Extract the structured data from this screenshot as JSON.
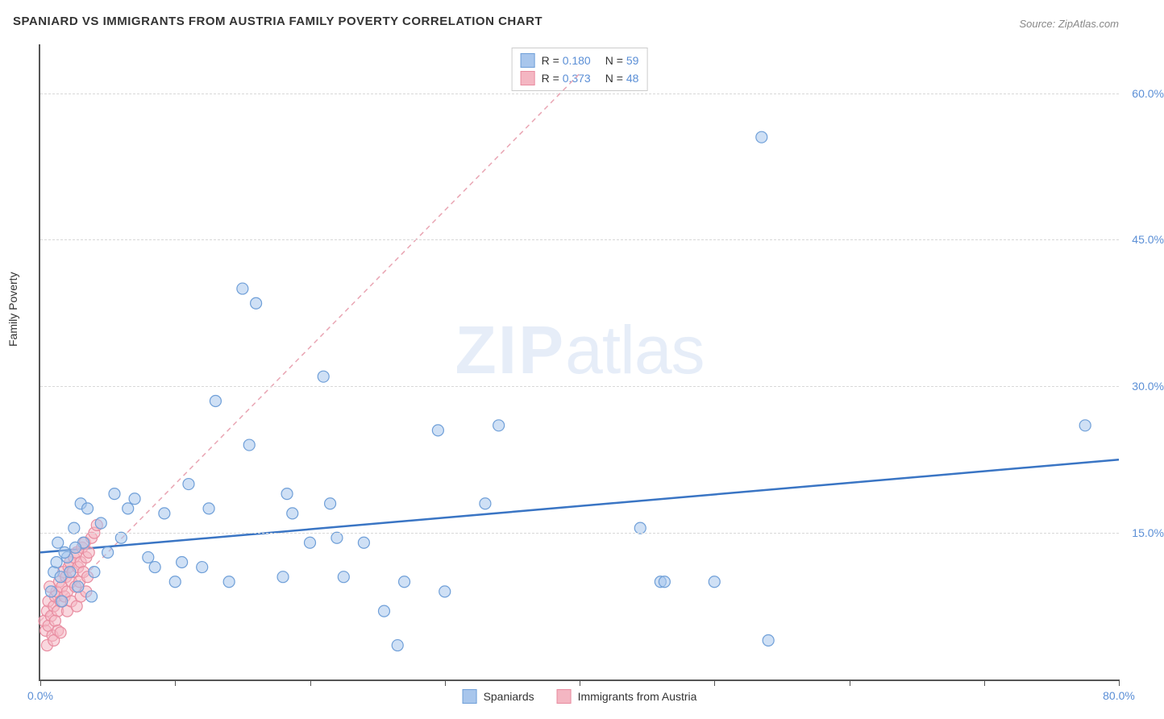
{
  "title": "SPANIARD VS IMMIGRANTS FROM AUSTRIA FAMILY POVERTY CORRELATION CHART",
  "source": "Source: ZipAtlas.com",
  "ylabel": "Family Poverty",
  "watermark_bold": "ZIP",
  "watermark_light": "atlas",
  "background_color": "#ffffff",
  "chart": {
    "type": "scatter",
    "xlim": [
      0,
      80
    ],
    "ylim": [
      0,
      65
    ],
    "x_tick_positions": [
      0,
      10,
      20,
      30,
      40,
      50,
      60,
      70,
      80
    ],
    "x_tick_labels": {
      "0": "0.0%",
      "80": "80.0%"
    },
    "y_ticks": [
      15,
      30,
      45,
      60
    ],
    "y_tick_labels": [
      "15.0%",
      "30.0%",
      "45.0%",
      "60.0%"
    ],
    "grid_color": "#d8d8d8",
    "axis_color": "#555555",
    "marker_radius": 7,
    "marker_stroke_width": 1.2,
    "series": [
      {
        "name": "Spaniards",
        "fill_color": "#a8c6ec",
        "stroke_color": "#6f9fd8",
        "fill_opacity": 0.55,
        "r_value": "0.180",
        "n_value": "59",
        "trendline": {
          "x1": 0,
          "y1": 13.0,
          "x2": 80,
          "y2": 22.5,
          "stroke": "#3a75c4",
          "stroke_width": 2.5,
          "dash": "none"
        },
        "points": [
          [
            1.0,
            11.0
          ],
          [
            1.2,
            12.0
          ],
          [
            1.5,
            10.5
          ],
          [
            0.8,
            9.0
          ],
          [
            2.0,
            12.5
          ],
          [
            2.2,
            11.0
          ],
          [
            1.8,
            13.0
          ],
          [
            2.5,
            15.5
          ],
          [
            3.0,
            18.0
          ],
          [
            3.2,
            14.0
          ],
          [
            3.5,
            17.5
          ],
          [
            4.0,
            11.0
          ],
          [
            4.5,
            16.0
          ],
          [
            5.0,
            13.0
          ],
          [
            5.5,
            19.0
          ],
          [
            6.0,
            14.5
          ],
          [
            6.5,
            17.5
          ],
          [
            7.0,
            18.5
          ],
          [
            8.0,
            12.5
          ],
          [
            8.5,
            11.5
          ],
          [
            9.2,
            17.0
          ],
          [
            10.0,
            10.0
          ],
          [
            10.5,
            12.0
          ],
          [
            11.0,
            20.0
          ],
          [
            12.0,
            11.5
          ],
          [
            12.5,
            17.5
          ],
          [
            13.0,
            28.5
          ],
          [
            14.0,
            10.0
          ],
          [
            15.0,
            40.0
          ],
          [
            15.5,
            24.0
          ],
          [
            16.0,
            38.5
          ],
          [
            18.0,
            10.5
          ],
          [
            18.3,
            19.0
          ],
          [
            18.7,
            17.0
          ],
          [
            20.0,
            14.0
          ],
          [
            21.0,
            31.0
          ],
          [
            21.5,
            18.0
          ],
          [
            22.0,
            14.5
          ],
          [
            22.5,
            10.5
          ],
          [
            24.0,
            14.0
          ],
          [
            25.5,
            7.0
          ],
          [
            26.5,
            3.5
          ],
          [
            27.0,
            10.0
          ],
          [
            29.5,
            25.5
          ],
          [
            30.0,
            9.0
          ],
          [
            33.0,
            18.0
          ],
          [
            34.0,
            26.0
          ],
          [
            44.5,
            15.5
          ],
          [
            46.0,
            10.0
          ],
          [
            46.3,
            10.0
          ],
          [
            50.0,
            10.0
          ],
          [
            53.5,
            55.5
          ],
          [
            54.0,
            4.0
          ],
          [
            77.5,
            26.0
          ],
          [
            1.6,
            8.0
          ],
          [
            2.8,
            9.5
          ],
          [
            3.8,
            8.5
          ],
          [
            1.3,
            14.0
          ],
          [
            2.6,
            13.5
          ]
        ]
      },
      {
        "name": "Immigrants from Austria",
        "fill_color": "#f4b6c2",
        "stroke_color": "#e88ca0",
        "fill_opacity": 0.55,
        "r_value": "0.373",
        "n_value": "48",
        "trendline": {
          "x1": 0,
          "y1": 6.0,
          "x2": 40,
          "y2": 62.0,
          "stroke": "#e9a5b3",
          "stroke_width": 1.5,
          "dash": "6,5"
        },
        "points": [
          [
            0.3,
            6.0
          ],
          [
            0.5,
            7.0
          ],
          [
            0.6,
            8.0
          ],
          [
            0.8,
            6.5
          ],
          [
            1.0,
            7.5
          ],
          [
            1.1,
            8.5
          ],
          [
            1.2,
            9.0
          ],
          [
            1.3,
            7.0
          ],
          [
            1.4,
            10.0
          ],
          [
            1.5,
            8.0
          ],
          [
            1.6,
            9.5
          ],
          [
            1.7,
            11.0
          ],
          [
            1.8,
            8.5
          ],
          [
            1.9,
            10.5
          ],
          [
            2.0,
            9.0
          ],
          [
            2.1,
            11.5
          ],
          [
            2.2,
            12.0
          ],
          [
            2.3,
            10.0
          ],
          [
            2.4,
            11.0
          ],
          [
            2.5,
            12.5
          ],
          [
            2.6,
            9.5
          ],
          [
            2.7,
            13.0
          ],
          [
            2.8,
            11.5
          ],
          [
            2.9,
            10.0
          ],
          [
            3.0,
            12.0
          ],
          [
            3.1,
            13.5
          ],
          [
            3.2,
            11.0
          ],
          [
            3.3,
            14.0
          ],
          [
            3.4,
            12.5
          ],
          [
            3.5,
            10.5
          ],
          [
            3.6,
            13.0
          ],
          [
            0.4,
            5.0
          ],
          [
            0.6,
            5.5
          ],
          [
            0.9,
            4.5
          ],
          [
            1.1,
            6.0
          ],
          [
            1.3,
            5.0
          ],
          [
            0.7,
            9.5
          ],
          [
            2.0,
            7.0
          ],
          [
            2.3,
            8.0
          ],
          [
            2.7,
            7.5
          ],
          [
            3.0,
            8.5
          ],
          [
            3.4,
            9.0
          ],
          [
            3.8,
            14.5
          ],
          [
            4.0,
            15.0
          ],
          [
            4.2,
            15.8
          ],
          [
            0.5,
            3.5
          ],
          [
            1.0,
            4.0
          ],
          [
            1.5,
            4.8
          ]
        ]
      }
    ]
  },
  "legend_bottom": [
    {
      "label": "Spaniards",
      "fill": "#a8c6ec",
      "stroke": "#6f9fd8"
    },
    {
      "label": "Immigrants from Austria",
      "fill": "#f4b6c2",
      "stroke": "#e88ca0"
    }
  ]
}
